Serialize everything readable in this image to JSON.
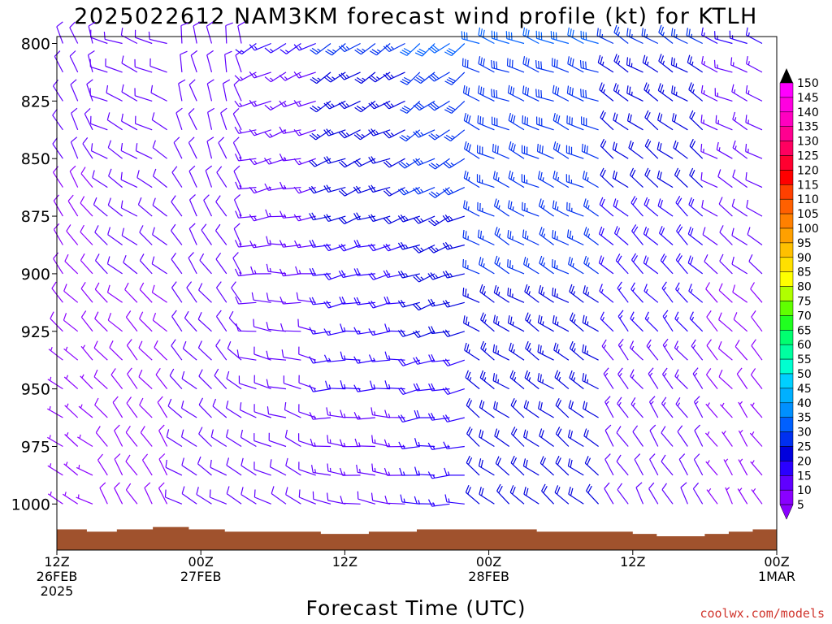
{
  "chart_data": {
    "type": "wind-barb-time-height",
    "title": "2025022612 NAM3KM forecast wind profile (kt) for KTLH",
    "xlabel": "Forecast Time (UTC)",
    "credit": "coolwx.com/models",
    "y_ticks": [
      "800",
      "825",
      "850",
      "875",
      "900",
      "925",
      "950",
      "975",
      "1000"
    ],
    "y_values": [
      800,
      825,
      850,
      875,
      900,
      925,
      950,
      975,
      1000
    ],
    "ylim": [
      797,
      1020
    ],
    "x_ticks": [
      {
        "hour": 0,
        "l1": "12Z",
        "l2": "26FEB",
        "l3": "2025"
      },
      {
        "hour": 12,
        "l1": "00Z",
        "l2": "27FEB",
        "l3": ""
      },
      {
        "hour": 24,
        "l1": "12Z",
        "l2": "",
        "l3": ""
      },
      {
        "hour": 36,
        "l1": "00Z",
        "l2": "28FEB",
        "l3": ""
      },
      {
        "hour": 48,
        "l1": "12Z",
        "l2": "",
        "l3": ""
      },
      {
        "hour": 60,
        "l1": "00Z",
        "l2": "1MAR",
        "l3": ""
      }
    ],
    "xlim": [
      0,
      60
    ],
    "colorbar": {
      "values": [
        5,
        10,
        15,
        20,
        25,
        30,
        35,
        40,
        45,
        50,
        55,
        60,
        65,
        70,
        75,
        80,
        85,
        90,
        95,
        100,
        105,
        110,
        115,
        120,
        125,
        130,
        135,
        140,
        145,
        150
      ],
      "colors": [
        "#8a00ff",
        "#6000ff",
        "#2a00ff",
        "#0000dd",
        "#0030f0",
        "#0060ff",
        "#0090ff",
        "#00b0ff",
        "#00d0ff",
        "#00ffd0",
        "#00ffa0",
        "#00ff70",
        "#20ff20",
        "#60ff00",
        "#b0ff00",
        "#ffff00",
        "#ffe000",
        "#ffc000",
        "#ffa000",
        "#ff8000",
        "#ff6000",
        "#ff4000",
        "#ff0000",
        "#ff0030",
        "#ff0060",
        "#ff0090",
        "#ff00c0",
        "#ff00e0",
        "#ff00ff",
        "#ff40ff"
      ]
    },
    "sections": [
      {
        "t_start": 0,
        "t_end": 4,
        "dir_low": 300,
        "dir_high": 340,
        "spd_low": 5,
        "spd_high": 12
      },
      {
        "t_start": 4,
        "t_end": 10,
        "dir_low": 330,
        "dir_high": 290,
        "spd_low": 8,
        "spd_high": 12
      },
      {
        "t_start": 10,
        "t_end": 16,
        "dir_low": 300,
        "dir_high": 350,
        "spd_low": 10,
        "spd_high": 10
      },
      {
        "t_start": 16,
        "t_end": 22,
        "dir_low": 300,
        "dir_high": 240,
        "spd_low": 10,
        "spd_high": 15
      },
      {
        "t_start": 22,
        "t_end": 30,
        "dir_low": 280,
        "dir_high": 235,
        "spd_low": 12,
        "spd_high": 25
      },
      {
        "t_start": 30,
        "t_end": 34.5,
        "dir_low": 270,
        "dir_high": 230,
        "spd_low": 15,
        "spd_high": 30
      },
      {
        "t_start": 34.5,
        "t_end": 46,
        "dir_low": 310,
        "dir_high": 290,
        "spd_low": 20,
        "spd_high": 30
      },
      {
        "t_start": 46,
        "t_end": 54,
        "dir_low": 330,
        "dir_high": 300,
        "spd_low": 10,
        "spd_high": 25
      },
      {
        "t_start": 54,
        "t_end": 60,
        "dir_low": 330,
        "dir_high": 290,
        "spd_low": 5,
        "spd_high": 15
      }
    ],
    "surface_pressure": [
      {
        "t": 0,
        "p": 1011
      },
      {
        "t": 2.5,
        "p": 1012
      },
      {
        "t": 5,
        "p": 1011
      },
      {
        "t": 8,
        "p": 1010
      },
      {
        "t": 11,
        "p": 1011
      },
      {
        "t": 14,
        "p": 1012
      },
      {
        "t": 18,
        "p": 1012
      },
      {
        "t": 22,
        "p": 1013
      },
      {
        "t": 26,
        "p": 1012
      },
      {
        "t": 30,
        "p": 1011
      },
      {
        "t": 36,
        "p": 1011
      },
      {
        "t": 40,
        "p": 1012
      },
      {
        "t": 44,
        "p": 1012
      },
      {
        "t": 48,
        "p": 1013
      },
      {
        "t": 50,
        "p": 1014
      },
      {
        "t": 52,
        "p": 1014
      },
      {
        "t": 54,
        "p": 1013
      },
      {
        "t": 56,
        "p": 1012
      },
      {
        "t": 58,
        "p": 1011
      },
      {
        "t": 60,
        "p": 1011
      }
    ],
    "terrain_color": "#a0522d"
  }
}
